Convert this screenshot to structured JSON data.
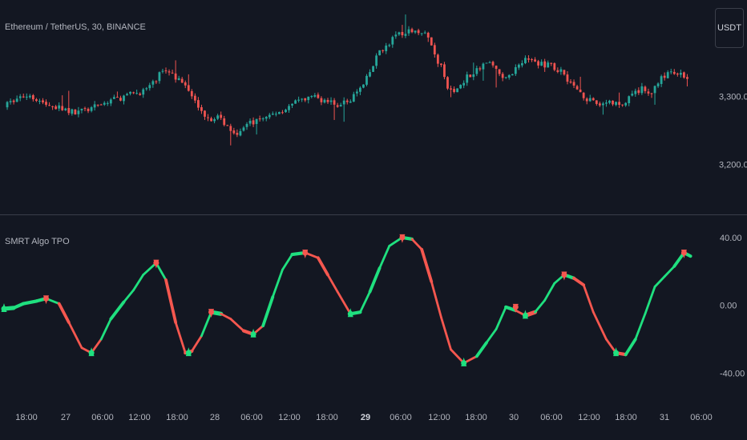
{
  "symbol_title": "Ethereum / TetherUS, 30, BINANCE",
  "currency": "USDT",
  "indicator_title": "SMRT Algo TPO",
  "colors": {
    "background": "#131722",
    "up": "#26a69a",
    "down": "#ef5350",
    "osc_up": "#1fe07f",
    "osc_down": "#f5574f",
    "text": "#b2b5be",
    "separator": "#3a3e4a"
  },
  "chart_data": [
    {
      "type": "candlestick",
      "title": "Ethereum / TetherUS, 30, BINANCE",
      "y_tick_labels": [
        "3,300.00",
        "3,200.00"
      ],
      "ylim": [
        3148,
        3418
      ],
      "grid": false,
      "x_tick_labels": [
        "18:00",
        "27",
        "06:00",
        "12:00",
        "18:00",
        "28",
        "06:00",
        "12:00",
        "18:00",
        "29",
        "06:00",
        "12:00",
        "18:00",
        "30",
        "06:00",
        "12:00",
        "18:00",
        "31",
        "06:00"
      ],
      "close_path": [
        [
          0,
          3285
        ],
        [
          4,
          3297
        ],
        [
          8,
          3303
        ],
        [
          12,
          3290
        ],
        [
          18,
          3282
        ],
        [
          22,
          3276
        ],
        [
          27,
          3282
        ],
        [
          33,
          3294
        ],
        [
          38,
          3301
        ],
        [
          43,
          3308
        ],
        [
          46,
          3318
        ],
        [
          48,
          3333
        ],
        [
          51,
          3338
        ],
        [
          53,
          3328
        ],
        [
          56,
          3312
        ],
        [
          59,
          3298
        ],
        [
          61,
          3276
        ],
        [
          64,
          3268
        ],
        [
          66,
          3270
        ],
        [
          68,
          3262
        ],
        [
          70,
          3252
        ],
        [
          72,
          3248
        ],
        [
          74,
          3256
        ],
        [
          77,
          3262
        ],
        [
          81,
          3270
        ],
        [
          86,
          3280
        ],
        [
          90,
          3290
        ],
        [
          95,
          3300
        ],
        [
          99,
          3294
        ],
        [
          103,
          3287
        ],
        [
          107,
          3296
        ],
        [
          111,
          3316
        ],
        [
          114,
          3345
        ],
        [
          116,
          3368
        ],
        [
          119,
          3375
        ],
        [
          121,
          3393
        ],
        [
          123,
          3388
        ],
        [
          126,
          3398
        ],
        [
          128,
          3397
        ],
        [
          131,
          3387
        ],
        [
          133,
          3360
        ],
        [
          135,
          3342
        ],
        [
          137,
          3312
        ],
        [
          139,
          3305
        ],
        [
          141,
          3318
        ],
        [
          143,
          3330
        ],
        [
          145,
          3335
        ],
        [
          147,
          3340
        ],
        [
          149,
          3352
        ],
        [
          151,
          3346
        ],
        [
          153,
          3332
        ],
        [
          155,
          3325
        ],
        [
          157,
          3336
        ],
        [
          159,
          3347
        ],
        [
          161,
          3357
        ],
        [
          163,
          3352
        ],
        [
          165,
          3348
        ],
        [
          167,
          3347
        ],
        [
          170,
          3342
        ],
        [
          172,
          3338
        ],
        [
          174,
          3326
        ],
        [
          176,
          3314
        ],
        [
          178,
          3306
        ],
        [
          180,
          3297
        ],
        [
          182,
          3290
        ],
        [
          184,
          3288
        ],
        [
          186,
          3292
        ],
        [
          188,
          3290
        ],
        [
          191,
          3287
        ],
        [
          193,
          3296
        ],
        [
          195,
          3306
        ],
        [
          197,
          3312
        ],
        [
          199,
          3302
        ],
        [
          201,
          3315
        ],
        [
          203,
          3326
        ],
        [
          205,
          3335
        ],
        [
          207,
          3333
        ],
        [
          209,
          3331
        ],
        [
          211,
          3330
        ]
      ]
    },
    {
      "type": "line",
      "title": "SMRT Algo TPO",
      "y_tick_labels": [
        "40.00",
        "0.00",
        "-40.00"
      ],
      "ylim": [
        -52,
        47
      ],
      "grid": false,
      "x": [
        0,
        3,
        6,
        10,
        13,
        17,
        20,
        24,
        27,
        30,
        33,
        37,
        40,
        43,
        47,
        50,
        53,
        56,
        58,
        61,
        64,
        67,
        70,
        74,
        77,
        80,
        83,
        86,
        89,
        93,
        97,
        100,
        103,
        107,
        110,
        113,
        116,
        119,
        123,
        126,
        129,
        132,
        135,
        138,
        142,
        146,
        149,
        152,
        155,
        158,
        161,
        164,
        167,
        170,
        173,
        176,
        179,
        182,
        186,
        189,
        192,
        195,
        198,
        201,
        204,
        207,
        210,
        212
      ],
      "y": [
        -2,
        -1.5,
        1,
        2.5,
        4,
        1,
        -10,
        -25,
        -28,
        -20,
        -8,
        2,
        9,
        18,
        25,
        15,
        -10,
        -28,
        -27,
        -18,
        -4,
        -5,
        -8,
        -15,
        -17,
        -12,
        5,
        21,
        30,
        31,
        28,
        18,
        8,
        -5,
        -4,
        8,
        22,
        35,
        40,
        39,
        33,
        14,
        -7,
        -26,
        -34,
        -30,
        -22,
        -14,
        -1,
        -3,
        -6,
        -4,
        3,
        13,
        18,
        16,
        12,
        -4,
        -20,
        -28,
        -29,
        -20,
        -5,
        11,
        17,
        23,
        31,
        29
      ],
      "direction": [
        "up",
        "up",
        "up",
        "up",
        "up",
        "down",
        "down",
        "down",
        "down",
        "up",
        "up",
        "up",
        "up",
        "up",
        "up",
        "down",
        "down",
        "down",
        "down",
        "up",
        "up",
        "down",
        "down",
        "down",
        "down",
        "up",
        "up",
        "up",
        "up",
        "down",
        "down",
        "down",
        "down",
        "up",
        "up",
        "up",
        "up",
        "up",
        "up",
        "down",
        "down",
        "down",
        "down",
        "down",
        "down",
        "up",
        "up",
        "up",
        "up",
        "down",
        "down",
        "up",
        "up",
        "up",
        "up",
        "down",
        "down",
        "down",
        "down",
        "down",
        "up",
        "up",
        "up",
        "up",
        "up",
        "up",
        "up",
        "down"
      ],
      "turning_points": [
        {
          "x": 0,
          "y": -2,
          "dir": "up"
        },
        {
          "x": 13,
          "y": 4,
          "dir": "down"
        },
        {
          "x": 27,
          "y": -28,
          "dir": "up"
        },
        {
          "x": 47,
          "y": 25,
          "dir": "down"
        },
        {
          "x": 57,
          "y": -28,
          "dir": "up"
        },
        {
          "x": 64,
          "y": -4,
          "dir": "down"
        },
        {
          "x": 77,
          "y": -17,
          "dir": "up"
        },
        {
          "x": 93,
          "y": 31,
          "dir": "down"
        },
        {
          "x": 107,
          "y": -5,
          "dir": "up"
        },
        {
          "x": 123,
          "y": 40,
          "dir": "down"
        },
        {
          "x": 142,
          "y": -34,
          "dir": "up"
        },
        {
          "x": 158,
          "y": -1,
          "dir": "down"
        },
        {
          "x": 161,
          "y": -6,
          "dir": "up"
        },
        {
          "x": 173,
          "y": 18,
          "dir": "down"
        },
        {
          "x": 189,
          "y": -28,
          "dir": "up"
        },
        {
          "x": 210,
          "y": 31,
          "dir": "down"
        }
      ]
    }
  ]
}
